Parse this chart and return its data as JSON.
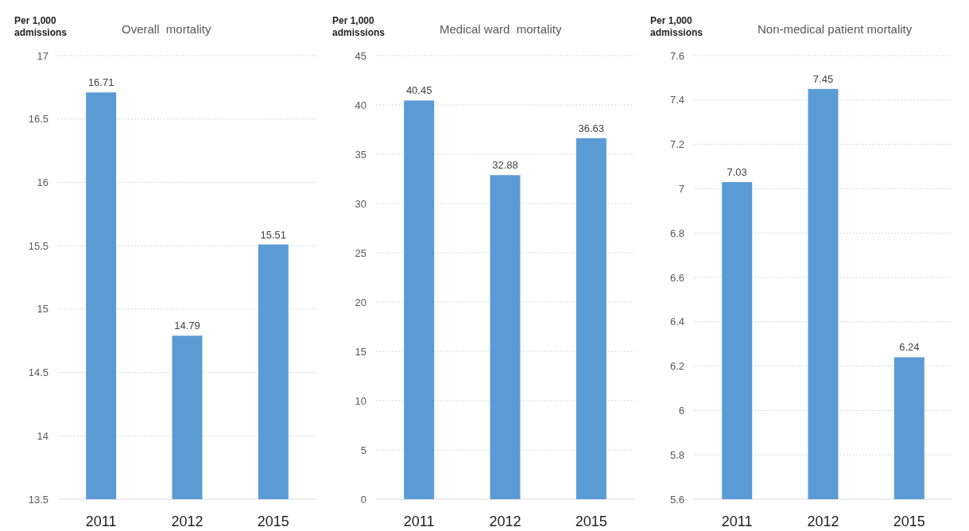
{
  "chart_data": [
    {
      "type": "bar",
      "title": "Overall  mortality",
      "ylabel": "Per 1,000 admissions",
      "categories": [
        "2011",
        "2012",
        "2015"
      ],
      "values": [
        16.71,
        14.79,
        15.51
      ],
      "color": "#5b9bd5",
      "ylim": [
        13.5,
        17
      ],
      "yticks": [
        13.5,
        14,
        14.5,
        15,
        15.5,
        16,
        16.5,
        17
      ],
      "grid": "y",
      "data_labels": true
    },
    {
      "type": "bar",
      "title": "Medical ward  mortality",
      "ylabel": "Per 1,000 admissions",
      "categories": [
        "2011",
        "2012",
        "2015"
      ],
      "values": [
        40.45,
        32.88,
        36.63
      ],
      "color": "#5b9bd5",
      "ylim": [
        0,
        45
      ],
      "yticks": [
        0,
        5,
        10,
        15,
        20,
        25,
        30,
        35,
        40,
        45
      ],
      "grid": "y",
      "data_labels": true
    },
    {
      "type": "bar",
      "title": "Non-medical patient mortality",
      "ylabel": "Per 1,000 admissions",
      "categories": [
        "2011",
        "2012",
        "2015"
      ],
      "values": [
        7.03,
        7.45,
        6.24
      ],
      "color": "#5b9bd5",
      "ylim": [
        5.6,
        7.6
      ],
      "yticks": [
        5.6,
        5.8,
        6,
        6.2,
        6.4,
        6.6,
        6.8,
        7,
        7.2,
        7.4,
        7.6
      ],
      "grid": "y",
      "data_labels": true
    }
  ]
}
